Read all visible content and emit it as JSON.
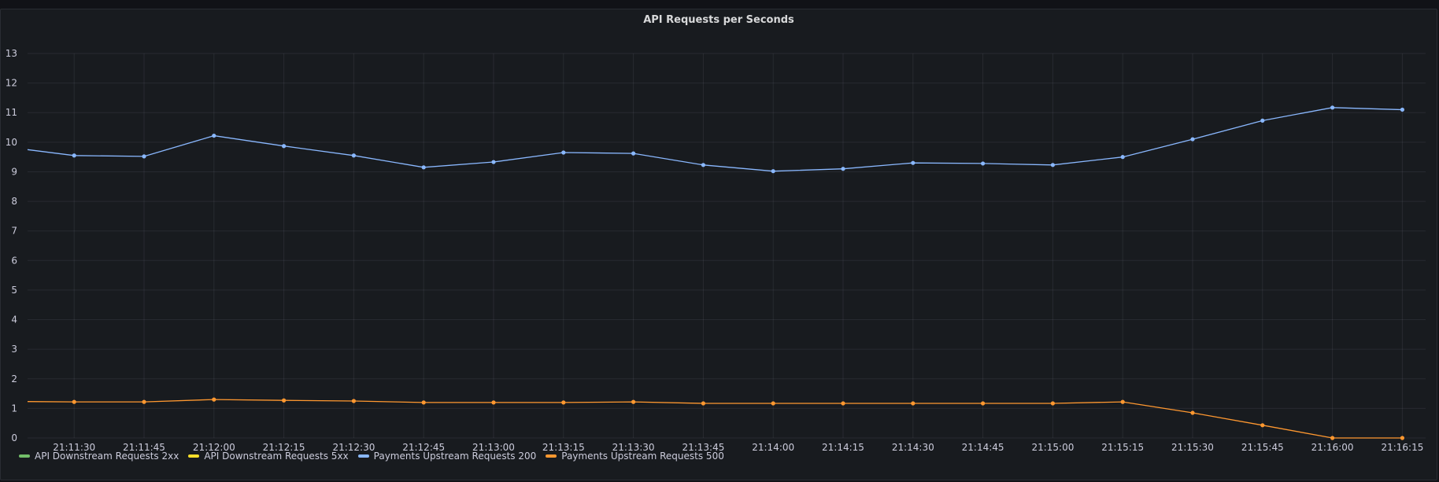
{
  "panel": {
    "title": "API Requests per Seconds"
  },
  "chart_data": {
    "type": "line",
    "title": "API Requests per Seconds",
    "xlabel": "",
    "ylabel": "",
    "ylim": [
      0,
      13
    ],
    "yticks": [
      0,
      1,
      2,
      3,
      4,
      5,
      6,
      7,
      8,
      9,
      10,
      11,
      12,
      13
    ],
    "x_start": "21:11:20",
    "x_end": "21:16:20",
    "xticks": [
      "21:11:30",
      "21:11:45",
      "21:12:00",
      "21:12:15",
      "21:12:30",
      "21:12:45",
      "21:13:00",
      "21:13:15",
      "21:13:30",
      "21:13:45",
      "21:14:00",
      "21:14:15",
      "21:14:30",
      "21:14:45",
      "21:15:00",
      "21:15:15",
      "21:15:30",
      "21:15:45",
      "21:16:00",
      "21:16:15"
    ],
    "grid": true,
    "legend": "bottom-left",
    "series": [
      {
        "name": "API Downstream Requests 2xx",
        "color": "#73bf69",
        "x": [],
        "values": []
      },
      {
        "name": "API Downstream Requests 5xx",
        "color": "#fade2a",
        "x": [],
        "values": []
      },
      {
        "name": "Payments Upstream Requests 200",
        "color": "#8ab8ff",
        "x": [
          "21:11:20",
          "21:11:30",
          "21:11:45",
          "21:12:00",
          "21:12:15",
          "21:12:30",
          "21:12:45",
          "21:13:00",
          "21:13:15",
          "21:13:30",
          "21:13:45",
          "21:14:00",
          "21:14:15",
          "21:14:30",
          "21:14:45",
          "21:15:00",
          "21:15:15",
          "21:15:30",
          "21:15:45",
          "21:16:00",
          "21:16:15"
        ],
        "values": [
          9.75,
          9.55,
          9.52,
          10.22,
          9.87,
          9.55,
          9.15,
          9.33,
          9.65,
          9.62,
          9.23,
          9.02,
          9.1,
          9.3,
          9.28,
          9.23,
          9.5,
          10.1,
          10.73,
          11.17,
          11.1
        ]
      },
      {
        "name": "Payments Upstream Requests 500",
        "color": "#ff9830",
        "x": [
          "21:11:20",
          "21:11:30",
          "21:11:45",
          "21:12:00",
          "21:12:15",
          "21:12:30",
          "21:12:45",
          "21:13:00",
          "21:13:15",
          "21:13:30",
          "21:13:45",
          "21:14:00",
          "21:14:15",
          "21:14:30",
          "21:14:45",
          "21:15:00",
          "21:15:15",
          "21:15:30",
          "21:15:45",
          "21:16:00",
          "21:16:15"
        ],
        "values": [
          1.23,
          1.22,
          1.22,
          1.3,
          1.27,
          1.25,
          1.2,
          1.2,
          1.2,
          1.22,
          1.17,
          1.17,
          1.17,
          1.17,
          1.17,
          1.17,
          1.22,
          0.85,
          0.43,
          0.0,
          0.0
        ]
      }
    ]
  }
}
